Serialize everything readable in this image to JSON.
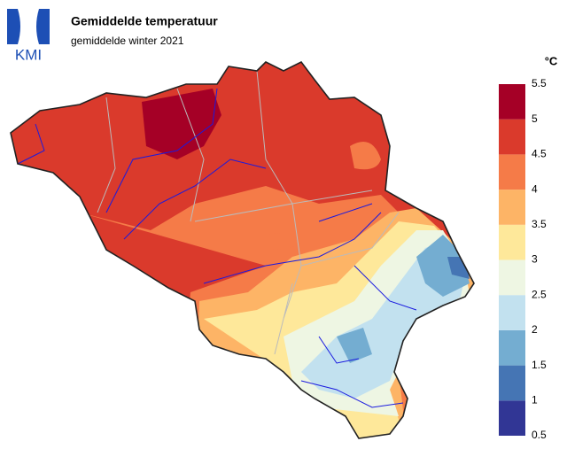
{
  "header": {
    "logo": "KMI",
    "title": "Gemiddelde temperatuur",
    "subtitle": "gemiddelde winter 2021"
  },
  "legend": {
    "unit": "°C",
    "ticks": [
      0.5,
      1,
      1.5,
      2,
      2.5,
      3,
      3.5,
      4,
      4.5,
      5,
      5.5
    ],
    "colors": [
      "#313695",
      "#4575b4",
      "#74add1",
      "#c2e1ef",
      "#eef6e3",
      "#fee89a",
      "#fdb466",
      "#f57b48",
      "#da3a2c",
      "#a50026"
    ]
  }
}
